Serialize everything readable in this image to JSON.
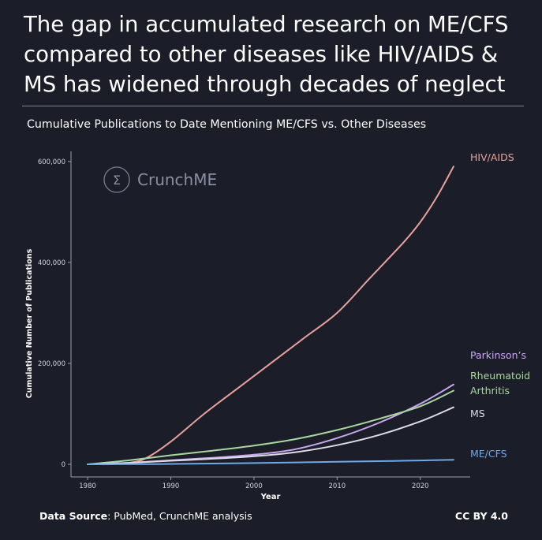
{
  "headline": "The gap in accumulated research on ME/CFS compared to other diseases like HIV/AIDS & MS has widened through decades of neglect",
  "subtitle": "Cumulative Publications to Date Mentioning ME/CFS vs. Other Diseases",
  "watermark": {
    "symbol": "Σ",
    "text": "CrunchME"
  },
  "footer": {
    "source_label": "Data Source",
    "source_text": ": PubMed, CrunchME analysis",
    "license": "CC BY 4.0"
  },
  "chart_data": {
    "type": "line",
    "title": "Cumulative Publications to Date Mentioning ME/CFS vs. Other Diseases",
    "xlabel": "Year",
    "ylabel": "Cumulative Number of Publications",
    "xlim": [
      1978,
      2026
    ],
    "ylim": [
      -25000,
      620000
    ],
    "xticks": [
      1980,
      1990,
      2000,
      2010,
      2020
    ],
    "yticks": [
      0,
      200000,
      400000,
      600000
    ],
    "ytick_labels": [
      "0",
      "200,000",
      "400,000",
      "600,000"
    ],
    "grid": false,
    "legend": "direct labels at right",
    "series": [
      {
        "name": "HIV/AIDS",
        "label_lines": [
          "HIV/AIDS"
        ],
        "color": "#e9a29b",
        "x": [
          1980,
          1983,
          1985,
          1987,
          1990,
          1994,
          1998,
          2002,
          2006,
          2010,
          2014,
          2018,
          2020,
          2022,
          2024
        ],
        "y": [
          0,
          500,
          3000,
          12000,
          45000,
          100000,
          150000,
          200000,
          250000,
          300000,
          370000,
          440000,
          480000,
          530000,
          590000
        ]
      },
      {
        "name": "Parkinson's",
        "label_lines": [
          "Parkinson’s"
        ],
        "color": "#c9a8f0",
        "x": [
          1980,
          1985,
          1990,
          1995,
          2000,
          2005,
          2010,
          2015,
          2020,
          2024
        ],
        "y": [
          0,
          3000,
          8000,
          13000,
          19000,
          30000,
          52000,
          82000,
          120000,
          158000
        ]
      },
      {
        "name": "Rheumatoid Arthritis",
        "label_lines": [
          "Rheumatoid",
          "Arthritis"
        ],
        "color": "#a8d8a0",
        "x": [
          1980,
          1985,
          1990,
          1995,
          2000,
          2005,
          2010,
          2015,
          2020,
          2024
        ],
        "y": [
          0,
          8000,
          18000,
          27000,
          37000,
          50000,
          68000,
          90000,
          115000,
          146000
        ]
      },
      {
        "name": "MS",
        "label_lines": [
          "MS"
        ],
        "color": "#dcdce6",
        "x": [
          1980,
          1985,
          1990,
          1995,
          2000,
          2005,
          2010,
          2015,
          2020,
          2024
        ],
        "y": [
          0,
          3000,
          7000,
          11000,
          16000,
          24000,
          38000,
          58000,
          85000,
          113000
        ]
      },
      {
        "name": "ME/CFS",
        "label_lines": [
          "ME/CFS"
        ],
        "color": "#6fa8e6",
        "x": [
          1980,
          1988,
          1995,
          2000,
          2005,
          2010,
          2015,
          2020,
          2024
        ],
        "y": [
          0,
          500,
          1500,
          2500,
          3800,
          5000,
          6300,
          7700,
          9000
        ]
      }
    ]
  }
}
